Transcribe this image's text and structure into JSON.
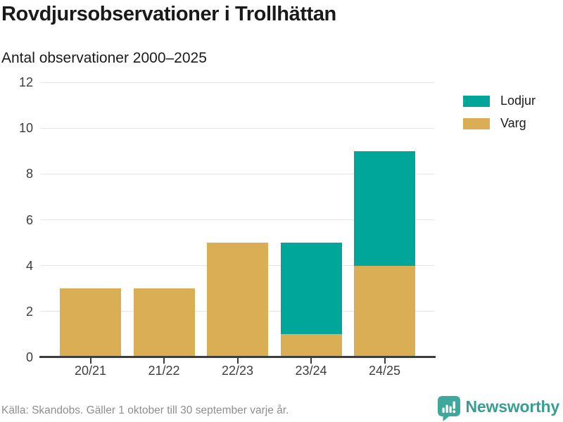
{
  "header": {
    "title": "Rovdjursobservationer i Trollhättan",
    "subtitle": "Antal observationer 2000–2025"
  },
  "chart_data": {
    "type": "bar",
    "stacked": true,
    "title": "Rovdjursobservationer i Trollhättan",
    "subtitle": "Antal observationer 2000–2025",
    "categories": [
      "20/21",
      "21/22",
      "22/23",
      "23/24",
      "24/25"
    ],
    "series": [
      {
        "name": "Lodjur",
        "color": "#00a699",
        "values": [
          0,
          0,
          0,
          4,
          5
        ]
      },
      {
        "name": "Varg",
        "color": "#d9ae55",
        "values": [
          3,
          3,
          5,
          1,
          4
        ]
      }
    ],
    "stack_order_bottom_to_top": [
      "Varg",
      "Lodjur"
    ],
    "totals": [
      3,
      3,
      5,
      5,
      9
    ],
    "xlabel": "",
    "ylabel": "",
    "ylim": [
      0,
      12
    ],
    "yticks": [
      0,
      2,
      4,
      6,
      8,
      10,
      12
    ],
    "grid": true,
    "legend_position": "top-right"
  },
  "footer": {
    "source": "Källa: Skandobs. Gäller 1 oktober till 30 september varje år.",
    "brand": "Newsworthy"
  },
  "colors": {
    "lodjur": "#00a699",
    "varg": "#d9ae55",
    "brand_teal": "#3aa296",
    "axis": "#3d3d3d",
    "gridline": "#e4e4e4",
    "muted_text": "#8e8e8e",
    "heading_text": "#1a1a1a"
  }
}
